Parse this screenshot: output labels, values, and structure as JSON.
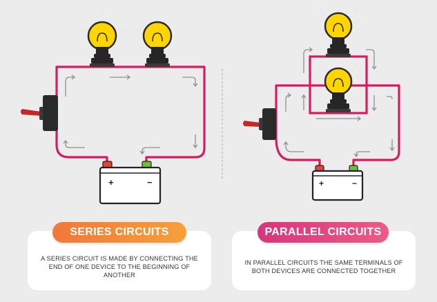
{
  "series": {
    "title": "SERIES CIRCUITS",
    "description": "A SERIES CIRCUIT IS MADE BY CONNECTING THE END OF ONE DEVICE TO THE BEGINNING OF ANOTHER",
    "battery_plus": "+",
    "battery_minus": "−",
    "color": "#f28a3a"
  },
  "parallel": {
    "title": "PARALLEL CIRCUITS",
    "description": "IN PARALLEL CIRCUITS THE SAME TERMINALS OF BOTH DEVICES ARE CONNECTED TOGETHER",
    "battery_plus": "+",
    "battery_minus": "−",
    "color": "#d8357c"
  },
  "colors": {
    "wire": "#d81b60",
    "bulb_glass": "#ffd500",
    "bulb_base": "#262626",
    "battery_positive_terminal": "#e8423a",
    "battery_negative_terminal": "#6cbf3a",
    "arrow": "#8e8e8e",
    "switch_lever": "#c62828"
  },
  "icons": {
    "bulb": "light-bulb-icon",
    "battery": "battery-icon",
    "switch": "toggle-switch-icon",
    "arrow": "current-flow-arrow-icon"
  }
}
